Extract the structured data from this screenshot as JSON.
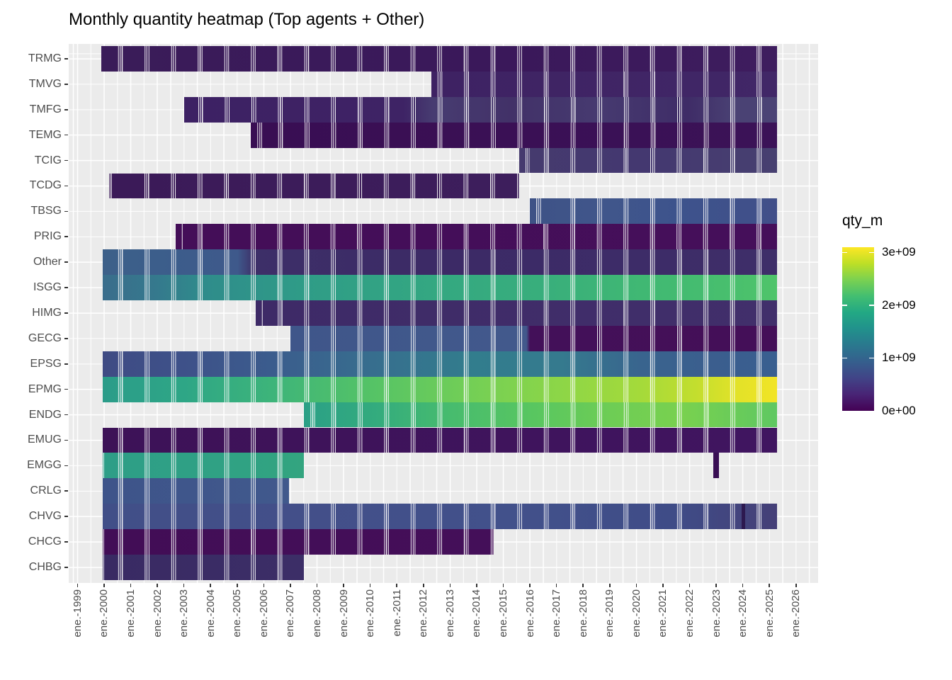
{
  "title": "Monthly quantity heatmap (Top agents + Other)",
  "legend": {
    "title": "qty_m",
    "tick_labels": [
      "3e+09",
      "2e+09",
      "1e+09",
      "0e+00"
    ],
    "tick_values": [
      3000000000,
      2000000000,
      1000000000,
      0
    ],
    "bar_max_value": 3100000000,
    "viridis_stops_bottom_to_top": [
      "#440154",
      "#482475",
      "#414487",
      "#355f8d",
      "#2a788e",
      "#21918c",
      "#22a884",
      "#42be71",
      "#7ad151",
      "#bddf26",
      "#fde725"
    ]
  },
  "chart_data": {
    "type": "heatmap",
    "title": "Monthly quantity heatmap (Top agents + Other)",
    "fill_variable": "qty_m",
    "fill_range": [
      0,
      3100000000
    ],
    "grid": "on",
    "legend_position": "right",
    "x_axis": {
      "start_year": 1999,
      "labels": [
        "ene.-1999",
        "ene.-2000",
        "ene.-2001",
        "ene.-2002",
        "ene.-2003",
        "ene.-2004",
        "ene.-2005",
        "ene.-2006",
        "ene.-2007",
        "ene.-2008",
        "ene.-2009",
        "ene.-2010",
        "ene.-2011",
        "ene.-2012",
        "ene.-2013",
        "ene.-2014",
        "ene.-2015",
        "ene.-2016",
        "ene.-2017",
        "ene.-2018",
        "ene.-2019",
        "ene.-2020",
        "ene.-2021",
        "ene.-2022",
        "ene.-2023",
        "ene.-2024",
        "ene.-2025",
        "ene.-2026"
      ]
    },
    "y_axis_rows_top_to_bottom": [
      "TRMG",
      "TMVG",
      "TMFG",
      "TEMG",
      "TCIG",
      "TCDG",
      "TBSG",
      "PRIG",
      "Other",
      "ISGG",
      "HIMG",
      "GECG",
      "EPSG",
      "EPMG",
      "ENDG",
      "EMUG",
      "EMGG",
      "CRLG",
      "CHVG",
      "CHCG",
      "CHBG"
    ],
    "rows": [
      {
        "label": "TRMG",
        "approx_qty_billions": [
          0.1,
          0.25
        ],
        "segments": [
          {
            "from": 1999.9,
            "to": 2025.3,
            "stops": [
              {
                "at": 0,
                "c": "#3a1c59"
              },
              {
                "at": 0.6,
                "c": "#3a185a"
              },
              {
                "at": 1,
                "c": "#3e1d5e"
              }
            ]
          }
        ],
        "cells": []
      },
      {
        "label": "TMVG",
        "approx_qty_billions": [
          0.2,
          0.3
        ],
        "segments": [
          {
            "from": 2012.3,
            "to": 2025.3,
            "stops": [
              {
                "at": 0,
                "c": "#3e2263"
              },
              {
                "at": 1,
                "c": "#412767"
              }
            ]
          }
        ],
        "cells": []
      },
      {
        "label": "TMFG",
        "approx_qty_billions": [
          0.25,
          0.5
        ],
        "segments": [
          {
            "from": 2003.0,
            "to": 2025.3,
            "stops": [
              {
                "at": 0,
                "c": "#3d2164"
              },
              {
                "at": 0.37,
                "c": "#3e2365"
              },
              {
                "at": 0.42,
                "c": "#473c71"
              },
              {
                "at": 0.55,
                "c": "#423168"
              },
              {
                "at": 0.7,
                "c": "#463a70"
              },
              {
                "at": 0.85,
                "c": "#3f2c67"
              },
              {
                "at": 0.93,
                "c": "#4a4274"
              },
              {
                "at": 1,
                "c": "#4b4375"
              }
            ]
          }
        ],
        "cells": []
      },
      {
        "label": "TEMG",
        "approx_qty_billions": [
          0.02,
          0.1
        ],
        "segments": [
          {
            "from": 2005.5,
            "to": 2025.3,
            "stops": [
              {
                "at": 0,
                "c": "#390e53"
              },
              {
                "at": 1,
                "c": "#3b1257"
              }
            ]
          }
        ],
        "cells": []
      },
      {
        "label": "TCIG",
        "approx_qty_billions": [
          0.45,
          0.6
        ],
        "segments": [
          {
            "from": 2015.6,
            "to": 2025.3,
            "stops": [
              {
                "at": 0,
                "c": "#453a6e"
              },
              {
                "at": 0.5,
                "c": "#443870"
              },
              {
                "at": 1,
                "c": "#474070"
              }
            ]
          }
        ],
        "cells": []
      },
      {
        "label": "TCDG",
        "approx_qty_billions": [
          0.1,
          0.25
        ],
        "segments": [
          {
            "from": 2000.2,
            "to": 2015.6,
            "stops": [
              {
                "at": 0,
                "c": "#3b1a58"
              },
              {
                "at": 1,
                "c": "#3d1e5c"
              }
            ]
          }
        ],
        "cells": []
      },
      {
        "label": "TBSG",
        "approx_qty_billions": [
          0.8,
          1.0
        ],
        "segments": [
          {
            "from": 2016.0,
            "to": 2025.3,
            "stops": [
              {
                "at": 0,
                "c": "#3e5286"
              },
              {
                "at": 0.3,
                "c": "#40568b"
              },
              {
                "at": 0.6,
                "c": "#3d538c"
              },
              {
                "at": 1,
                "c": "#414f89"
              }
            ]
          }
        ],
        "cells": []
      },
      {
        "label": "PRIG",
        "approx_qty_billions": [
          0.02,
          0.1
        ],
        "segments": [
          {
            "from": 2002.7,
            "to": 2025.3,
            "stops": [
              {
                "at": 0,
                "c": "#440e58"
              },
              {
                "at": 1,
                "c": "#450f5a"
              }
            ]
          }
        ],
        "cells": []
      },
      {
        "label": "Other",
        "approx_qty_billions": [
          0.35,
          1.1
        ],
        "segments": [
          {
            "from": 1999.95,
            "to": 2025.3,
            "stops": [
              {
                "at": 0,
                "c": "#3d6089"
              },
              {
                "at": 0.08,
                "c": "#3c5e8b"
              },
              {
                "at": 0.2,
                "c": "#3e598b"
              },
              {
                "at": 0.225,
                "c": "#3d2f68"
              },
              {
                "at": 0.5,
                "c": "#3c2a66"
              },
              {
                "at": 0.8,
                "c": "#3d2c68"
              },
              {
                "at": 1,
                "c": "#3e2e69"
              }
            ]
          }
        ],
        "cells": []
      },
      {
        "label": "ISGG",
        "approx_qty_billions": [
          1.2,
          2.2
        ],
        "segments": [
          {
            "from": 1999.95,
            "to": 2025.3,
            "stops": [
              {
                "at": 0,
                "c": "#3a6d8c"
              },
              {
                "at": 0.08,
                "c": "#35798d"
              },
              {
                "at": 0.15,
                "c": "#2f8c8b"
              },
              {
                "at": 0.3,
                "c": "#2f9c87"
              },
              {
                "at": 0.5,
                "c": "#34a881"
              },
              {
                "at": 0.65,
                "c": "#38ae7c"
              },
              {
                "at": 0.8,
                "c": "#40b873"
              },
              {
                "at": 0.9,
                "c": "#46bd6f"
              },
              {
                "at": 1,
                "c": "#4fc46a"
              }
            ]
          }
        ],
        "cells": []
      },
      {
        "label": "HIMG",
        "approx_qty_billions": [
          0.3,
          0.5
        ],
        "segments": [
          {
            "from": 2005.7,
            "to": 2025.3,
            "stops": [
              {
                "at": 0,
                "c": "#3e2a67"
              },
              {
                "at": 1,
                "c": "#412f6b"
              }
            ]
          }
        ],
        "cells": []
      },
      {
        "label": "GECG",
        "approx_qty_billions": [
          0.05,
          1.0
        ],
        "segments": [
          {
            "from": 2007.0,
            "to": 2025.3,
            "stops": [
              {
                "at": 0,
                "c": "#3f568a"
              },
              {
                "at": 0.485,
                "c": "#42598c"
              },
              {
                "at": 0.492,
                "c": "#431059"
              },
              {
                "at": 1,
                "c": "#440f58"
              }
            ]
          }
        ],
        "cells": []
      },
      {
        "label": "EPSG",
        "approx_qty_billions": [
          0.8,
          1.6
        ],
        "segments": [
          {
            "from": 1999.95,
            "to": 2025.3,
            "stops": [
              {
                "at": 0,
                "c": "#3f4b84"
              },
              {
                "at": 0.12,
                "c": "#3e5189"
              },
              {
                "at": 0.25,
                "c": "#3b5c8d"
              },
              {
                "at": 0.4,
                "c": "#376e8e"
              },
              {
                "at": 0.55,
                "c": "#327d8d"
              },
              {
                "at": 0.68,
                "c": "#357a8e"
              },
              {
                "at": 0.8,
                "c": "#39648e"
              },
              {
                "at": 0.9,
                "c": "#3b5e8e"
              },
              {
                "at": 1,
                "c": "#395f90"
              }
            ]
          }
        ],
        "cells": []
      },
      {
        "label": "EPMG",
        "approx_qty_billions": [
          1.8,
          3.0
        ],
        "segments": [
          {
            "from": 1999.95,
            "to": 2025.3,
            "stops": [
              {
                "at": 0,
                "c": "#2b9c89"
              },
              {
                "at": 0.12,
                "c": "#2ea686"
              },
              {
                "at": 0.25,
                "c": "#3db47a"
              },
              {
                "at": 0.4,
                "c": "#55c366"
              },
              {
                "at": 0.55,
                "c": "#74cf55"
              },
              {
                "at": 0.68,
                "c": "#8dd647"
              },
              {
                "at": 0.8,
                "c": "#a5da3a"
              },
              {
                "at": 0.88,
                "c": "#c3de2e"
              },
              {
                "at": 0.94,
                "c": "#e2e228"
              },
              {
                "at": 1,
                "c": "#f2e426"
              }
            ]
          }
        ],
        "cells": []
      },
      {
        "label": "ENDG",
        "approx_qty_billions": [
          1.9,
          2.5
        ],
        "segments": [
          {
            "from": 2007.5,
            "to": 2025.3,
            "stops": [
              {
                "at": 0,
                "c": "#2ba086"
              },
              {
                "at": 0.15,
                "c": "#33ab7e"
              },
              {
                "at": 0.3,
                "c": "#46bb6f"
              },
              {
                "at": 0.5,
                "c": "#5ac75f"
              },
              {
                "at": 0.65,
                "c": "#6ecd55"
              },
              {
                "at": 0.8,
                "c": "#79d14f"
              },
              {
                "at": 0.9,
                "c": "#6bcc58"
              },
              {
                "at": 1,
                "c": "#5fc862"
              }
            ]
          }
        ],
        "cells": []
      },
      {
        "label": "EMUG",
        "approx_qty_billions": [
          0.05,
          0.15
        ],
        "segments": [
          {
            "from": 1999.95,
            "to": 2025.3,
            "stops": [
              {
                "at": 0,
                "c": "#3d1257"
              },
              {
                "at": 1,
                "c": "#401560"
              }
            ]
          }
        ],
        "cells": []
      },
      {
        "label": "EMGG",
        "approx_qty_billions": [
          1.8,
          2.0
        ],
        "segments": [
          {
            "from": 1999.95,
            "to": 2007.5,
            "stops": [
              {
                "at": 0,
                "c": "#2e9e87"
              },
              {
                "at": 0.4,
                "c": "#2fa085"
              },
              {
                "at": 0.7,
                "c": "#30a283"
              },
              {
                "at": 1,
                "c": "#33a47f"
              }
            ]
          }
        ],
        "cells": [
          {
            "from": 2022.9,
            "to": 2023.1,
            "c": "#390e54",
            "approx_qty_billions": 0.05
          }
        ]
      },
      {
        "label": "CRLG",
        "approx_qty_billions": [
          0.85,
          1.0
        ],
        "segments": [
          {
            "from": 1999.95,
            "to": 2006.95,
            "stops": [
              {
                "at": 0,
                "c": "#3e548a"
              },
              {
                "at": 0.5,
                "c": "#3f568b"
              },
              {
                "at": 1,
                "c": "#41598c"
              }
            ]
          }
        ],
        "cells": []
      },
      {
        "label": "CHVG",
        "approx_qty_billions": [
          0.7,
          0.9
        ],
        "segments": [
          {
            "from": 1999.95,
            "to": 2025.3,
            "stops": [
              {
                "at": 0,
                "c": "#414f88"
              },
              {
                "at": 0.3,
                "c": "#434f89"
              },
              {
                "at": 0.6,
                "c": "#42518b"
              },
              {
                "at": 0.85,
                "c": "#3f4c87"
              },
              {
                "at": 1,
                "c": "#453f77"
              }
            ]
          }
        ],
        "cells": [
          {
            "from": 2023.95,
            "to": 2024.1,
            "c": "#2d1950",
            "approx_qty_billions": 0.3
          }
        ]
      },
      {
        "label": "CHCG",
        "approx_qty_billions": [
          0.02,
          0.1
        ],
        "segments": [
          {
            "from": 1999.95,
            "to": 2014.65,
            "stops": [
              {
                "at": 0,
                "c": "#420d56"
              },
              {
                "at": 1,
                "c": "#440f59"
              }
            ]
          }
        ],
        "cells": []
      },
      {
        "label": "CHBG",
        "approx_qty_billions": [
          0.4,
          0.6
        ],
        "segments": [
          {
            "from": 1999.95,
            "to": 2007.5,
            "stops": [
              {
                "at": 0,
                "c": "#392a63"
              },
              {
                "at": 0.5,
                "c": "#3a2c65"
              },
              {
                "at": 1,
                "c": "#3c2e67"
              }
            ]
          }
        ],
        "cells": []
      }
    ]
  }
}
